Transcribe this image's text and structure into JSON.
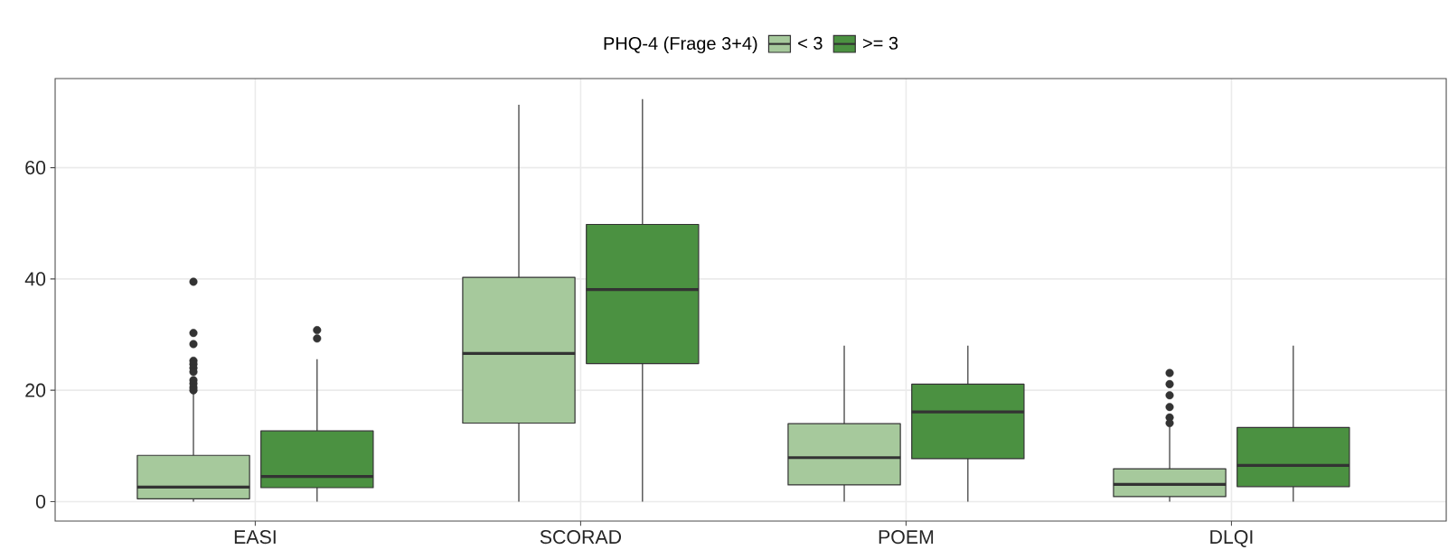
{
  "chart_data": {
    "type": "box",
    "legend_title": "PHQ-4 (Frage 3+4)",
    "categories": [
      "EASI",
      "SCORAD",
      "POEM",
      "DLQI"
    ],
    "ylim": [
      -3.5,
      76
    ],
    "yticks": [
      0,
      20,
      40,
      60
    ],
    "grid": true,
    "legend": "top",
    "series": [
      {
        "name": "< 3",
        "color": "#a6c99c",
        "boxes": [
          {
            "low": 0,
            "q1": 0.5,
            "median": 2.6,
            "q3": 8.3,
            "high": 19.5,
            "outliers": [
              39.5,
              30.3,
              28.3,
              25.3,
              24.7,
              24,
              23.3,
              21.8,
              21.2,
              20.5,
              20
            ]
          },
          {
            "low": 0,
            "q1": 14.1,
            "median": 26.6,
            "q3": 40.3,
            "high": 71.3
          },
          {
            "low": 0,
            "q1": 3.0,
            "median": 7.9,
            "q3": 14.0,
            "high": 28.0
          },
          {
            "low": 0,
            "q1": 0.9,
            "median": 3.1,
            "q3": 5.9,
            "high": 13.5,
            "outliers": [
              23.1,
              21.1,
              19.1,
              17.0,
              15.1,
              14.1
            ]
          }
        ]
      },
      {
        "name": ">= 3",
        "color": "#4b9141",
        "boxes": [
          {
            "low": 0,
            "q1": 2.5,
            "median": 4.5,
            "q3": 12.7,
            "high": 25.6,
            "outliers": [
              30.8,
              29.3
            ]
          },
          {
            "low": 0,
            "q1": 24.8,
            "median": 38.1,
            "q3": 49.8,
            "high": 72.3
          },
          {
            "low": 0,
            "q1": 7.7,
            "median": 16.1,
            "q3": 21.1,
            "high": 28.0
          },
          {
            "low": 0,
            "q1": 2.7,
            "median": 6.5,
            "q3": 13.3,
            "high": 28.0
          }
        ]
      }
    ]
  }
}
